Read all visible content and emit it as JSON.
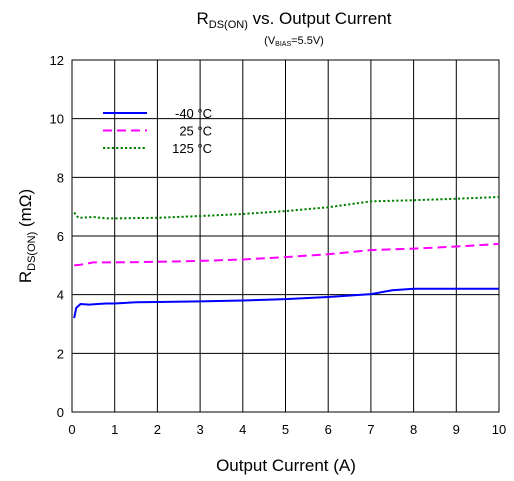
{
  "chart_data": {
    "type": "line",
    "title": {
      "main": "R",
      "sub": "DS(ON)",
      "rest": " vs. Output Current"
    },
    "subtitle": {
      "open": "(V",
      "sub": "BIAS",
      "rest": "=5.5V)"
    },
    "xlabel": "Output Current (A)",
    "ylabel": {
      "main": "R",
      "sub": "DS(ON)",
      "rest": " (mΩ)"
    },
    "xlim": [
      0,
      10
    ],
    "ylim": [
      0,
      12
    ],
    "x_ticks": [
      "0",
      "1",
      "2",
      "3",
      "4",
      "5",
      "6",
      "7",
      "8",
      "9",
      "10"
    ],
    "y_ticks": [
      "0",
      "2",
      "4",
      "6",
      "8",
      "10",
      "12"
    ],
    "grid": true,
    "legend_position": "top-left",
    "series": [
      {
        "name": "-40 °C",
        "color": "#0000ff",
        "dash": "solid",
        "points": [
          [
            0.05,
            3.2
          ],
          [
            0.1,
            3.55
          ],
          [
            0.2,
            3.68
          ],
          [
            0.4,
            3.66
          ],
          [
            0.6,
            3.68
          ],
          [
            0.8,
            3.7
          ],
          [
            1.0,
            3.7
          ],
          [
            1.5,
            3.74
          ],
          [
            2.0,
            3.75
          ],
          [
            3.0,
            3.77
          ],
          [
            4.0,
            3.8
          ],
          [
            5.0,
            3.85
          ],
          [
            6.0,
            3.92
          ],
          [
            7.0,
            4.02
          ],
          [
            7.5,
            4.15
          ],
          [
            8.0,
            4.2
          ],
          [
            9.0,
            4.2
          ],
          [
            10.0,
            4.2
          ]
        ]
      },
      {
        "name": "25 °C",
        "color": "#ff00ff",
        "dash": "dashed",
        "points": [
          [
            0.05,
            5.0
          ],
          [
            0.2,
            5.02
          ],
          [
            0.5,
            5.1
          ],
          [
            1.0,
            5.1
          ],
          [
            2.0,
            5.12
          ],
          [
            3.0,
            5.15
          ],
          [
            4.0,
            5.2
          ],
          [
            5.0,
            5.28
          ],
          [
            6.0,
            5.38
          ],
          [
            7.0,
            5.52
          ],
          [
            8.0,
            5.57
          ],
          [
            9.0,
            5.64
          ],
          [
            10.0,
            5.73
          ]
        ]
      },
      {
        "name": "125 °C",
        "color": "#008000",
        "dash": "dotted",
        "points": [
          [
            0.05,
            6.8
          ],
          [
            0.15,
            6.62
          ],
          [
            0.3,
            6.63
          ],
          [
            0.5,
            6.65
          ],
          [
            0.8,
            6.6
          ],
          [
            1.0,
            6.6
          ],
          [
            2.0,
            6.62
          ],
          [
            3.0,
            6.68
          ],
          [
            4.0,
            6.75
          ],
          [
            5.0,
            6.85
          ],
          [
            6.0,
            6.98
          ],
          [
            7.0,
            7.18
          ],
          [
            8.0,
            7.22
          ],
          [
            9.0,
            7.27
          ],
          [
            10.0,
            7.33
          ]
        ]
      }
    ]
  }
}
